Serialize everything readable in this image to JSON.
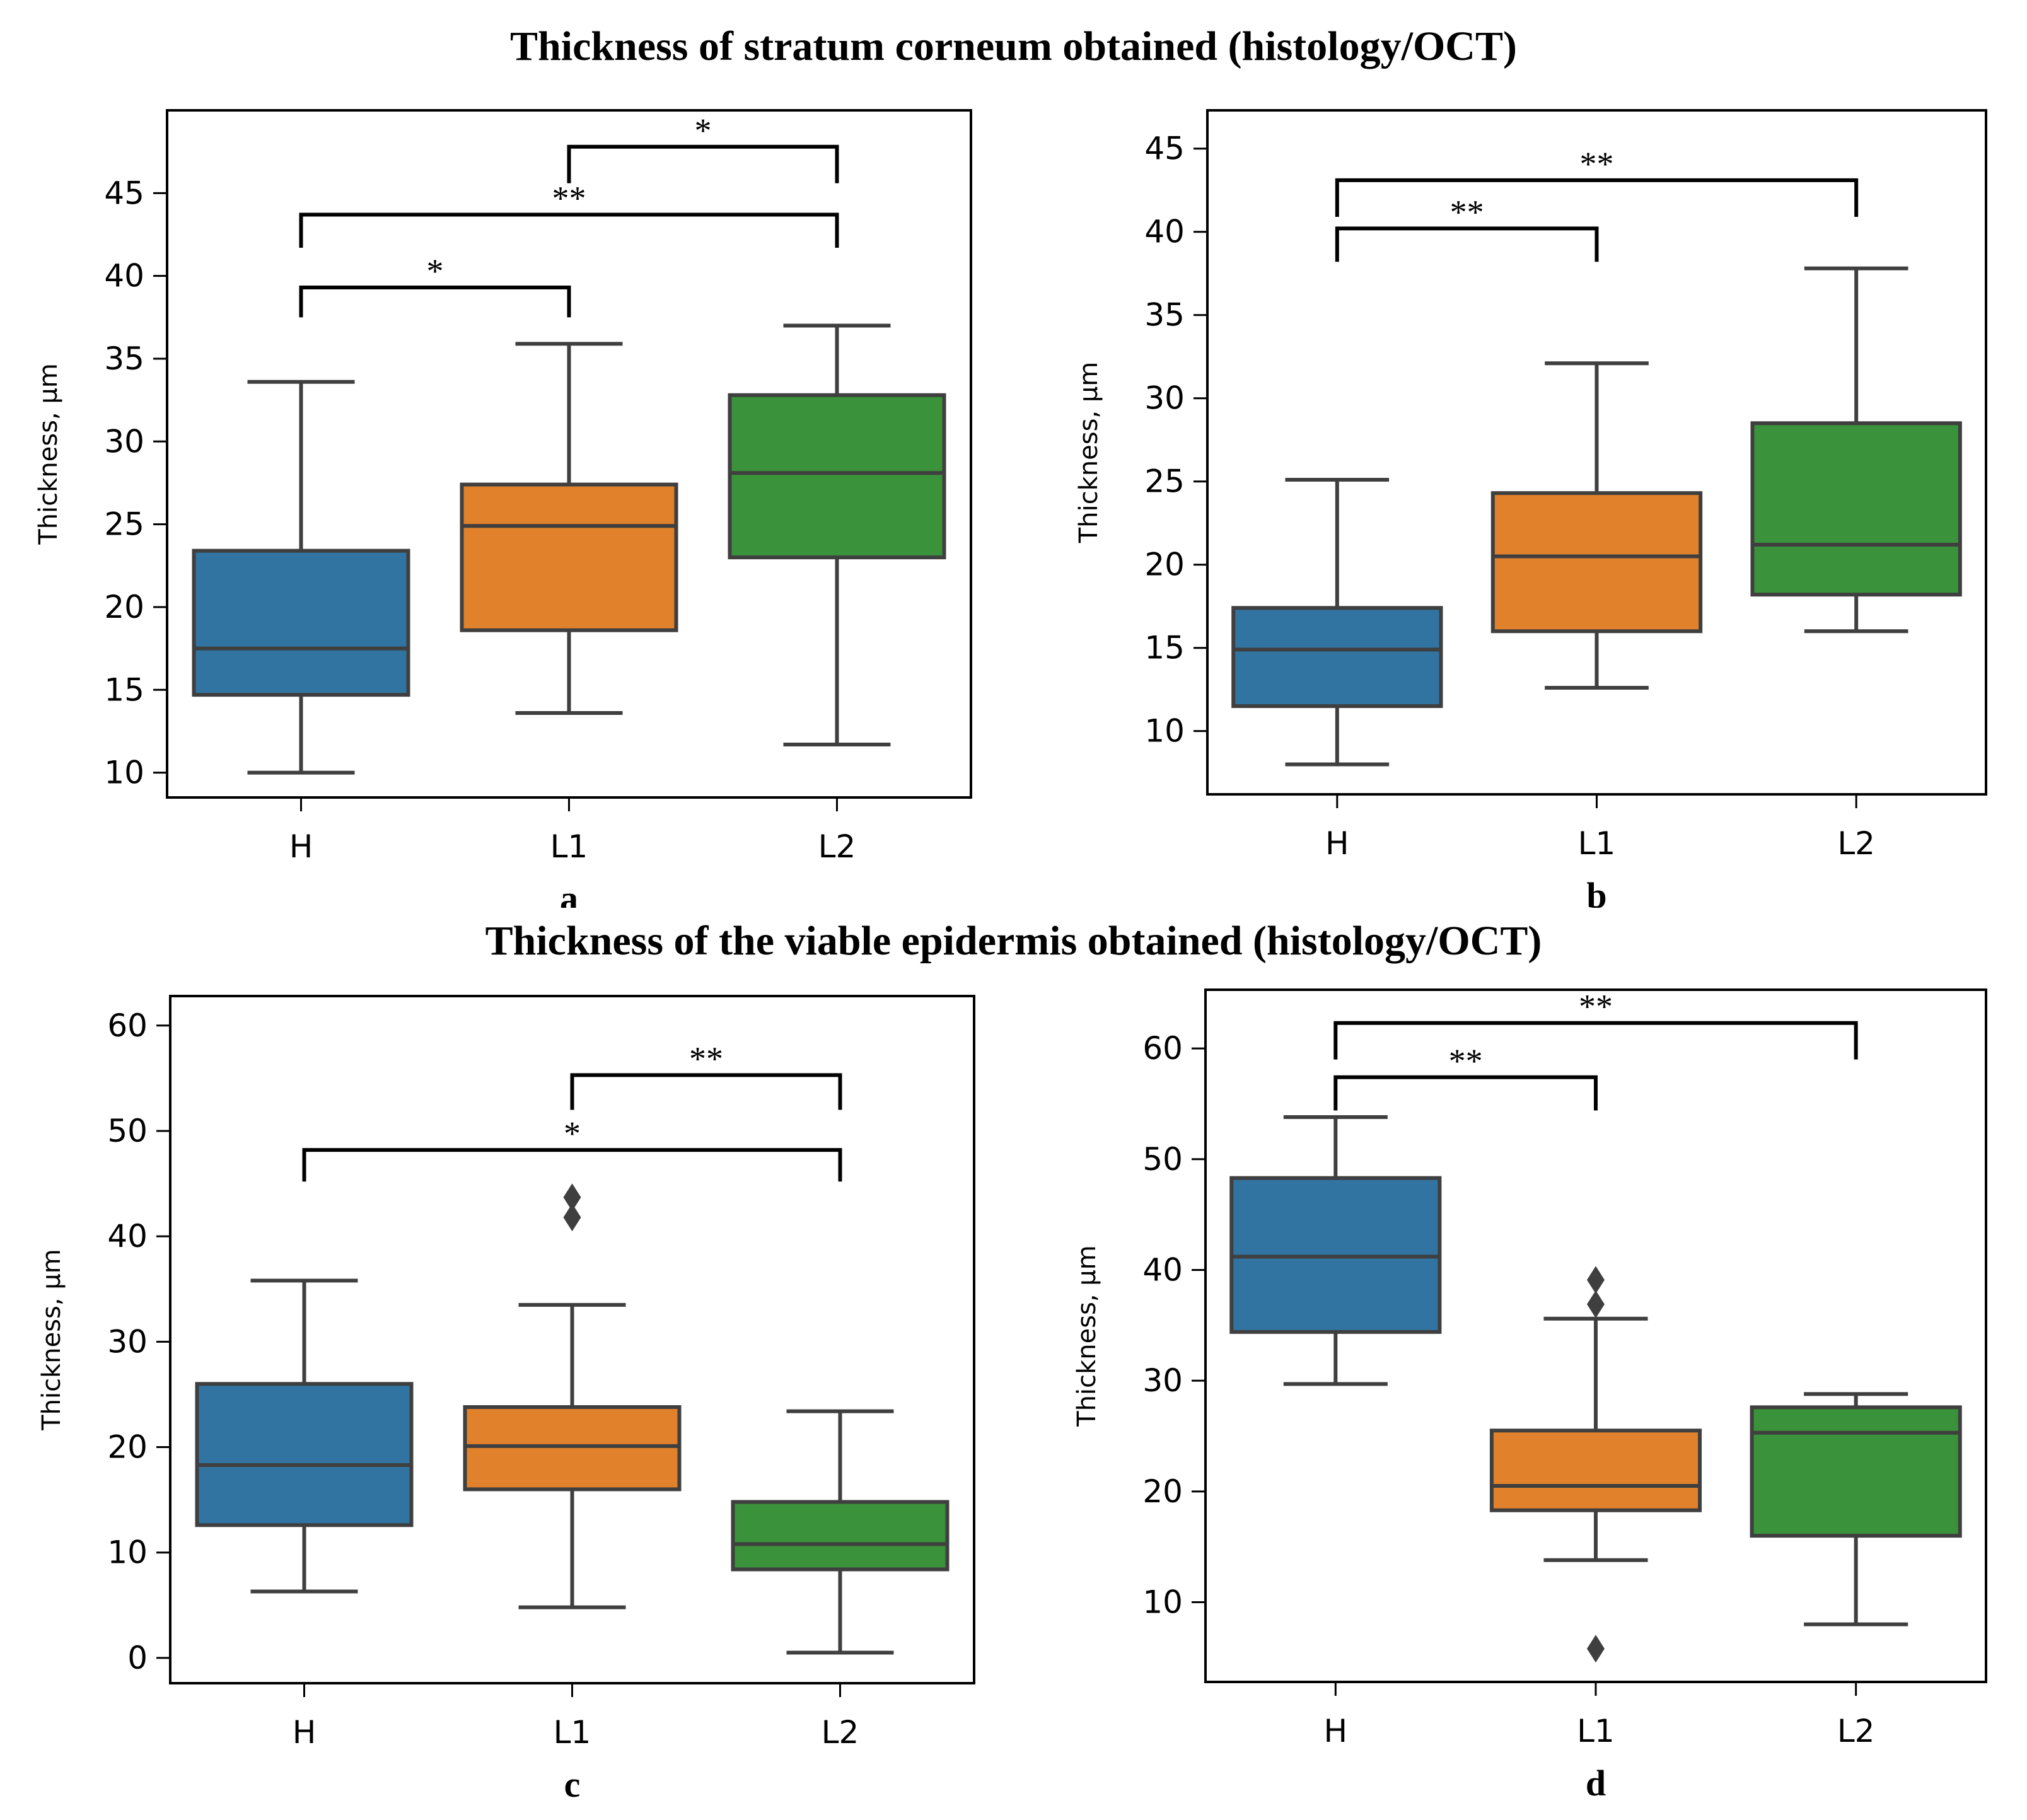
{
  "figure": {
    "title_top": "Thickness of stratum corneum obtained (histology/OCT)",
    "title_bottom": "Thickness of the viable epidermis obtained (histology/OCT)"
  },
  "colors": {
    "H": "#3274a1",
    "L1": "#e1812c",
    "L2": "#3a923a",
    "line": "#3f3f3f"
  },
  "chart_data": [
    {
      "id": "a",
      "type": "box",
      "panel_label": "a",
      "ylabel": "Thickness, μm",
      "xlabel": "",
      "categories": [
        "H",
        "L1",
        "L2"
      ],
      "ylim": [
        8.5,
        50
      ],
      "yticks": [
        10,
        15,
        20,
        25,
        30,
        35,
        40,
        45
      ],
      "boxes": [
        {
          "name": "H",
          "whisker_low": 10.0,
          "q1": 14.7,
          "median": 17.5,
          "q3": 23.4,
          "whisker_high": 33.6,
          "outliers": []
        },
        {
          "name": "L1",
          "whisker_low": 13.6,
          "q1": 18.6,
          "median": 24.9,
          "q3": 27.4,
          "whisker_high": 35.9,
          "outliers": []
        },
        {
          "name": "L2",
          "whisker_low": 11.7,
          "q1": 23.0,
          "median": 28.1,
          "q3": 32.8,
          "whisker_high": 37.0,
          "outliers": []
        }
      ],
      "significance": [
        {
          "from": "H",
          "to": "L1",
          "level": 39.3,
          "drop": 1.8,
          "label": "*"
        },
        {
          "from": "H",
          "to": "L2",
          "level": 43.7,
          "drop": 2.0,
          "label": "**"
        },
        {
          "from": "L1",
          "to": "L2",
          "level": 47.8,
          "drop": 2.2,
          "label": "*"
        }
      ]
    },
    {
      "id": "b",
      "type": "box",
      "panel_label": "b",
      "ylabel": "Thickness, μm",
      "xlabel": "",
      "categories": [
        "H",
        "L1",
        "L2"
      ],
      "ylim": [
        6.2,
        47.3
      ],
      "yticks": [
        10,
        15,
        20,
        25,
        30,
        35,
        40,
        45
      ],
      "boxes": [
        {
          "name": "H",
          "whisker_low": 8.0,
          "q1": 11.5,
          "median": 14.9,
          "q3": 17.4,
          "whisker_high": 25.1,
          "outliers": []
        },
        {
          "name": "L1",
          "whisker_low": 12.6,
          "q1": 16.0,
          "median": 20.5,
          "q3": 24.3,
          "whisker_high": 32.1,
          "outliers": []
        },
        {
          "name": "L2",
          "whisker_low": 16.0,
          "q1": 18.2,
          "median": 21.2,
          "q3": 28.5,
          "whisker_high": 37.8,
          "outliers": []
        }
      ],
      "significance": [
        {
          "from": "H",
          "to": "L1",
          "level": 40.2,
          "drop": 2.0,
          "label": "**"
        },
        {
          "from": "H",
          "to": "L2",
          "level": 43.1,
          "drop": 2.2,
          "label": "**"
        }
      ]
    },
    {
      "id": "c",
      "type": "box",
      "panel_label": "c",
      "ylabel": "Thickness, μm",
      "xlabel": "",
      "categories": [
        "H",
        "L1",
        "L2"
      ],
      "ylim": [
        -2.4,
        62.8
      ],
      "yticks": [
        0,
        10,
        20,
        30,
        40,
        50,
        60
      ],
      "boxes": [
        {
          "name": "H",
          "whisker_low": 6.3,
          "q1": 12.6,
          "median": 18.3,
          "q3": 26.0,
          "whisker_high": 35.8,
          "outliers": []
        },
        {
          "name": "L1",
          "whisker_low": 4.8,
          "q1": 16.0,
          "median": 20.1,
          "q3": 23.8,
          "whisker_high": 33.5,
          "outliers": [
            41.8,
            43.7
          ]
        },
        {
          "name": "L2",
          "whisker_low": 0.5,
          "q1": 8.4,
          "median": 10.8,
          "q3": 14.8,
          "whisker_high": 23.4,
          "outliers": []
        }
      ],
      "significance": [
        {
          "from": "H",
          "to": "L2",
          "level": 48.2,
          "drop": 3.0,
          "label": "*"
        },
        {
          "from": "L1",
          "to": "L2",
          "level": 55.3,
          "drop": 3.3,
          "label": "**"
        }
      ]
    },
    {
      "id": "d",
      "type": "box",
      "panel_label": "d",
      "ylabel": "Thickness, μm",
      "xlabel": "",
      "categories": [
        "H",
        "L1",
        "L2"
      ],
      "ylim": [
        2.8,
        65.3
      ],
      "yticks": [
        10,
        20,
        30,
        40,
        50,
        60
      ],
      "boxes": [
        {
          "name": "H",
          "whisker_low": 29.7,
          "q1": 34.4,
          "median": 41.2,
          "q3": 48.3,
          "whisker_high": 53.8,
          "outliers": []
        },
        {
          "name": "L1",
          "whisker_low": 13.8,
          "q1": 18.3,
          "median": 20.5,
          "q3": 25.5,
          "whisker_high": 35.6,
          "outliers": [
            5.8,
            36.9,
            39.1
          ]
        },
        {
          "name": "L2",
          "whisker_low": 8.0,
          "q1": 16.0,
          "median": 25.3,
          "q3": 27.6,
          "whisker_high": 28.8,
          "outliers": []
        }
      ],
      "significance": [
        {
          "from": "H",
          "to": "L1",
          "level": 57.4,
          "drop": 3.0,
          "label": "**"
        },
        {
          "from": "H",
          "to": "L2",
          "level": 62.3,
          "drop": 3.3,
          "label": "**"
        }
      ]
    }
  ]
}
